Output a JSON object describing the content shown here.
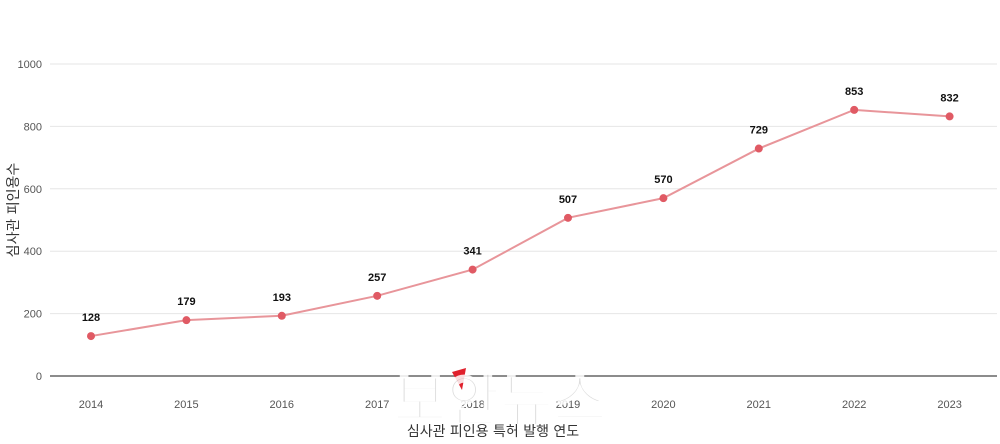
{
  "chart_data": {
    "type": "line",
    "title": "",
    "xlabel": "심사관 피인용 특허 발행 연도",
    "ylabel": "심사관 피인용수",
    "x": [
      "2014",
      "2015",
      "2016",
      "2017",
      "2018",
      "2019",
      "2020",
      "2021",
      "2022",
      "2023"
    ],
    "series": [
      {
        "values": [
          128,
          179,
          193,
          257,
          341,
          507,
          570,
          729,
          853,
          832
        ]
      }
    ],
    "ylim": [
      0,
      1000
    ],
    "yticks": [
      0,
      200,
      400,
      600,
      800,
      1000
    ],
    "grid": true,
    "legend": "none",
    "line_color": "#e8959a",
    "marker_color": "#e05a64"
  },
  "watermark": {
    "text": "보안뉴스",
    "marker_color": "#e0202c"
  }
}
